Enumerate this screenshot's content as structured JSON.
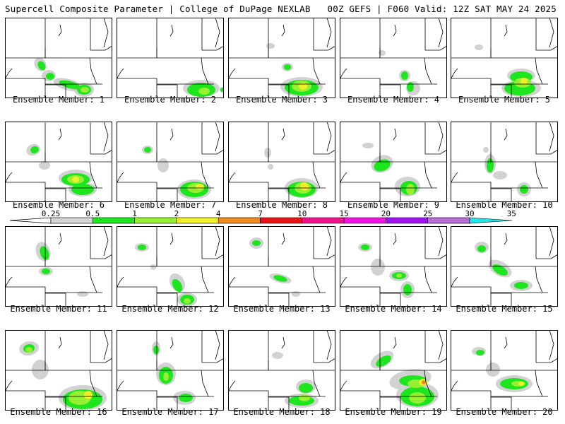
{
  "header": {
    "left": "Supercell Composite Parameter | College of DuPage NEXLAB",
    "right": "00Z GEFS | F060 Valid: 12Z SAT MAY 24 2025"
  },
  "panels": [
    {
      "label": "Ensemble Member: 1",
      "shape": "A"
    },
    {
      "label": "Ensemble Member: 2",
      "shape": "B"
    },
    {
      "label": "Ensemble Member: 3",
      "shape": "C"
    },
    {
      "label": "Ensemble Member: 4",
      "shape": "D"
    },
    {
      "label": "Ensemble Member: 5",
      "shape": "E"
    },
    {
      "label": "Ensemble Member: 6",
      "shape": "F"
    },
    {
      "label": "Ensemble Member: 7",
      "shape": "G"
    },
    {
      "label": "Ensemble Member: 8",
      "shape": "H"
    },
    {
      "label": "Ensemble Member: 9",
      "shape": "I"
    },
    {
      "label": "Ensemble Member: 10",
      "shape": "J"
    },
    {
      "label": "Ensemble Member: 11",
      "shape": "K"
    },
    {
      "label": "Ensemble Member: 12",
      "shape": "L"
    },
    {
      "label": "Ensemble Member: 13",
      "shape": "M"
    },
    {
      "label": "Ensemble Member: 14",
      "shape": "N"
    },
    {
      "label": "Ensemble Member: 15",
      "shape": "O"
    },
    {
      "label": "Ensemble Member: 16",
      "shape": "P"
    },
    {
      "label": "Ensemble Member: 17",
      "shape": "Q"
    },
    {
      "label": "Ensemble Member: 18",
      "shape": "R"
    },
    {
      "label": "Ensemble Member: 19",
      "shape": "S"
    },
    {
      "label": "Ensemble Member: 20",
      "shape": "T"
    }
  ],
  "colorbar": {
    "levels": [
      "0.25",
      "0.5",
      "1",
      "2",
      "4",
      "7",
      "10",
      "15",
      "20",
      "25",
      "30",
      "35"
    ],
    "colors": [
      "#d2d2d2",
      "#1ee61e",
      "#96f032",
      "#f0f028",
      "#f08c1e",
      "#e61414",
      "#f0148c",
      "#f014e6",
      "#a014f0",
      "#b46ed2",
      "#1ee6e6"
    ]
  }
}
